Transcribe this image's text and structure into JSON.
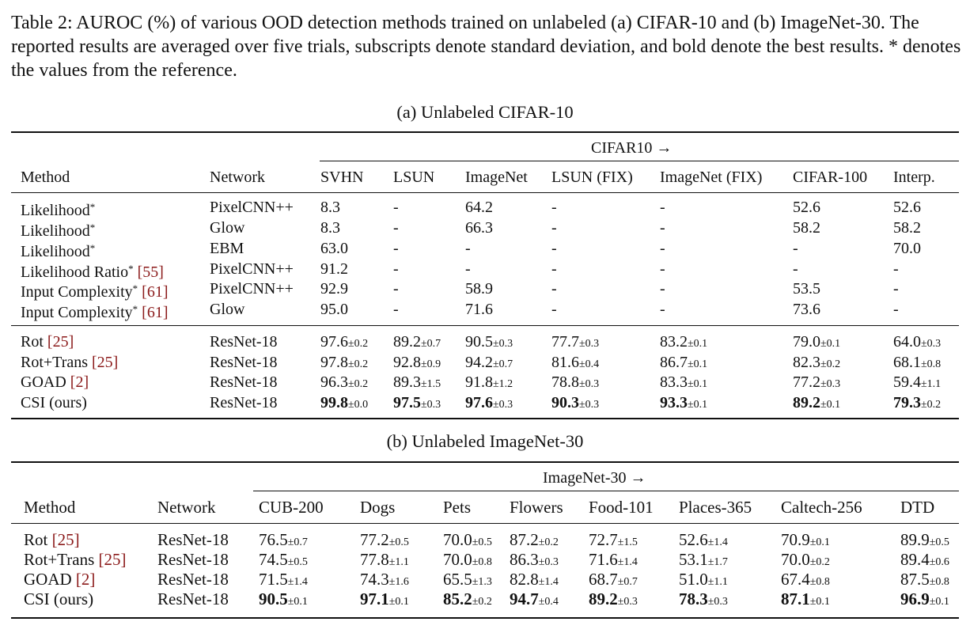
{
  "caption": "Table 2: AUROC (%) of various OOD detection methods trained on unlabeled (a) CIFAR-10 and (b) ImageNet-30. The reported results are averaged over five trials, subscripts denote standard deviation, and bold denote the best results. * denotes the values from the reference.",
  "table_a": {
    "title": "(a) Unlabeled CIFAR-10",
    "group_header": "CIFAR10 →",
    "columns": [
      "Method",
      "Network",
      "SVHN",
      "LSUN",
      "ImageNet",
      "LSUN (FIX)",
      "ImageNet (FIX)",
      "CIFAR-100",
      "Interp."
    ],
    "rows": [
      {
        "method": "Likelihood",
        "star": "*",
        "ref": "",
        "network": "PixelCNN++",
        "cells": [
          [
            "8.3",
            ""
          ],
          [
            "-",
            ""
          ],
          [
            "64.2",
            ""
          ],
          [
            "-",
            ""
          ],
          [
            "-",
            ""
          ],
          [
            "52.6",
            ""
          ],
          [
            "52.6",
            ""
          ]
        ]
      },
      {
        "method": "Likelihood",
        "star": "*",
        "ref": "",
        "network": "Glow",
        "cells": [
          [
            "8.3",
            ""
          ],
          [
            "-",
            ""
          ],
          [
            "66.3",
            ""
          ],
          [
            "-",
            ""
          ],
          [
            "-",
            ""
          ],
          [
            "58.2",
            ""
          ],
          [
            "58.2",
            ""
          ]
        ]
      },
      {
        "method": "Likelihood",
        "star": "*",
        "ref": "",
        "network": "EBM",
        "cells": [
          [
            "63.0",
            ""
          ],
          [
            "-",
            ""
          ],
          [
            "-",
            ""
          ],
          [
            "-",
            ""
          ],
          [
            "-",
            ""
          ],
          [
            "-",
            ""
          ],
          [
            "70.0",
            ""
          ]
        ]
      },
      {
        "method": "Likelihood Ratio",
        "star": "*",
        "ref": "[55]",
        "network": "PixelCNN++",
        "cells": [
          [
            "91.2",
            ""
          ],
          [
            "-",
            ""
          ],
          [
            "-",
            ""
          ],
          [
            "-",
            ""
          ],
          [
            "-",
            ""
          ],
          [
            "-",
            ""
          ],
          [
            "-",
            ""
          ]
        ]
      },
      {
        "method": "Input Complexity",
        "star": "*",
        "ref": "[61]",
        "network": "PixelCNN++",
        "cells": [
          [
            "92.9",
            ""
          ],
          [
            "-",
            ""
          ],
          [
            "58.9",
            ""
          ],
          [
            "-",
            ""
          ],
          [
            "-",
            ""
          ],
          [
            "53.5",
            ""
          ],
          [
            "-",
            ""
          ]
        ]
      },
      {
        "method": "Input Complexity",
        "star": "*",
        "ref": "[61]",
        "network": "Glow",
        "cells": [
          [
            "95.0",
            ""
          ],
          [
            "-",
            ""
          ],
          [
            "71.6",
            ""
          ],
          [
            "-",
            ""
          ],
          [
            "-",
            ""
          ],
          [
            "73.6",
            ""
          ],
          [
            "-",
            ""
          ]
        ]
      },
      {
        "method": "Rot",
        "star": "",
        "ref": "[25]",
        "network": "ResNet-18",
        "cells": [
          [
            "97.6",
            "±0.2"
          ],
          [
            "89.2",
            "±0.7"
          ],
          [
            "90.5",
            "±0.3"
          ],
          [
            "77.7",
            "±0.3"
          ],
          [
            "83.2",
            "±0.1"
          ],
          [
            "79.0",
            "±0.1"
          ],
          [
            "64.0",
            "±0.3"
          ]
        ]
      },
      {
        "method": "Rot+Trans",
        "star": "",
        "ref": "[25]",
        "network": "ResNet-18",
        "cells": [
          [
            "97.8",
            "±0.2"
          ],
          [
            "92.8",
            "±0.9"
          ],
          [
            "94.2",
            "±0.7"
          ],
          [
            "81.6",
            "±0.4"
          ],
          [
            "86.7",
            "±0.1"
          ],
          [
            "82.3",
            "±0.2"
          ],
          [
            "68.1",
            "±0.8"
          ]
        ]
      },
      {
        "method": "GOAD",
        "star": "",
        "ref": "[2]",
        "network": "ResNet-18",
        "cells": [
          [
            "96.3",
            "±0.2"
          ],
          [
            "89.3",
            "±1.5"
          ],
          [
            "91.8",
            "±1.2"
          ],
          [
            "78.8",
            "±0.3"
          ],
          [
            "83.3",
            "±0.1"
          ],
          [
            "77.2",
            "±0.3"
          ],
          [
            "59.4",
            "±1.1"
          ]
        ]
      },
      {
        "method": "CSI (ours)",
        "star": "",
        "ref": "",
        "network": "ResNet-18",
        "bold": true,
        "cells": [
          [
            "99.8",
            "±0.0"
          ],
          [
            "97.5",
            "±0.3"
          ],
          [
            "97.6",
            "±0.3"
          ],
          [
            "90.3",
            "±0.3"
          ],
          [
            "93.3",
            "±0.1"
          ],
          [
            "89.2",
            "±0.1"
          ],
          [
            "79.3",
            "±0.2"
          ]
        ]
      }
    ]
  },
  "table_b": {
    "title": "(b) Unlabeled ImageNet-30",
    "group_header": "ImageNet-30 →",
    "columns": [
      "Method",
      "Network",
      "CUB-200",
      "Dogs",
      "Pets",
      "Flowers",
      "Food-101",
      "Places-365",
      "Caltech-256",
      "DTD"
    ],
    "rows": [
      {
        "method": "Rot",
        "ref": "[25]",
        "network": "ResNet-18",
        "cells": [
          [
            "76.5",
            "±0.7"
          ],
          [
            "77.2",
            "±0.5"
          ],
          [
            "70.0",
            "±0.5"
          ],
          [
            "87.2",
            "±0.2"
          ],
          [
            "72.7",
            "±1.5"
          ],
          [
            "52.6",
            "±1.4"
          ],
          [
            "70.9",
            "±0.1"
          ],
          [
            "89.9",
            "±0.5"
          ]
        ]
      },
      {
        "method": "Rot+Trans",
        "ref": "[25]",
        "network": "ResNet-18",
        "cells": [
          [
            "74.5",
            "±0.5"
          ],
          [
            "77.8",
            "±1.1"
          ],
          [
            "70.0",
            "±0.8"
          ],
          [
            "86.3",
            "±0.3"
          ],
          [
            "71.6",
            "±1.4"
          ],
          [
            "53.1",
            "±1.7"
          ],
          [
            "70.0",
            "±0.2"
          ],
          [
            "89.4",
            "±0.6"
          ]
        ]
      },
      {
        "method": "GOAD",
        "ref": "[2]",
        "network": "ResNet-18",
        "cells": [
          [
            "71.5",
            "±1.4"
          ],
          [
            "74.3",
            "±1.6"
          ],
          [
            "65.5",
            "±1.3"
          ],
          [
            "82.8",
            "±1.4"
          ],
          [
            "68.7",
            "±0.7"
          ],
          [
            "51.0",
            "±1.1"
          ],
          [
            "67.4",
            "±0.8"
          ],
          [
            "87.5",
            "±0.8"
          ]
        ]
      },
      {
        "method": "CSI (ours)",
        "ref": "",
        "network": "ResNet-18",
        "bold": true,
        "cells": [
          [
            "90.5",
            "±0.1"
          ],
          [
            "97.1",
            "±0.1"
          ],
          [
            "85.2",
            "±0.2"
          ],
          [
            "94.7",
            "±0.4"
          ],
          [
            "89.2",
            "±0.3"
          ],
          [
            "78.3",
            "±0.3"
          ],
          [
            "87.1",
            "±0.1"
          ],
          [
            "96.9",
            "±0.1"
          ]
        ]
      }
    ]
  }
}
